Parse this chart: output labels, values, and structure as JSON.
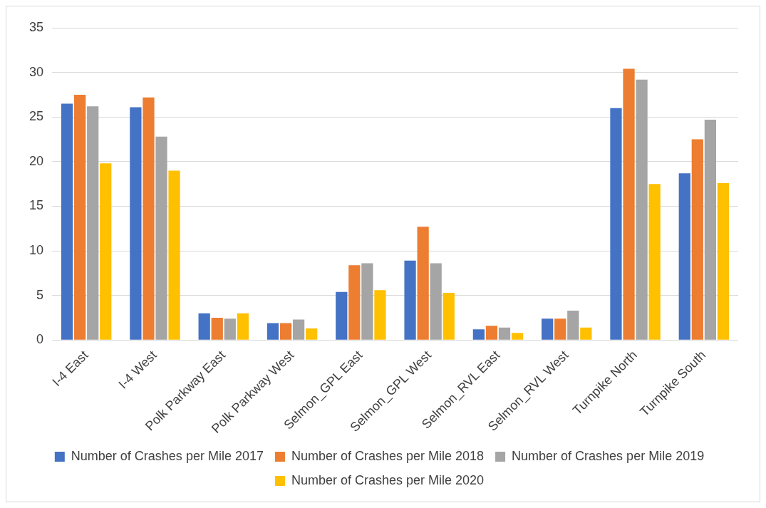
{
  "chart_data": {
    "type": "bar",
    "categories": [
      "I-4 East",
      "I-4 West",
      "Polk Parkway East",
      "Polk Parkway West",
      "Selmon_GPL East",
      "Selmon_GPL West",
      "Selmon_RVL East",
      "Selmon_RVL West",
      "Turnpike North",
      "Turnpike South"
    ],
    "series": [
      {
        "name": "Number of Crashes per Mile 2017",
        "color": "#4472c4",
        "values": [
          26.5,
          26.1,
          3.0,
          1.9,
          5.4,
          8.9,
          1.2,
          2.4,
          26.0,
          18.7
        ]
      },
      {
        "name": "Number of Crashes per Mile 2018",
        "color": "#ed7d31",
        "values": [
          27.5,
          27.2,
          2.5,
          1.9,
          8.4,
          12.7,
          1.6,
          2.4,
          30.4,
          22.5
        ]
      },
      {
        "name": "Number of Crashes per Mile 2019",
        "color": "#a5a5a5",
        "values": [
          26.2,
          22.8,
          2.4,
          2.3,
          8.6,
          8.6,
          1.4,
          3.3,
          29.2,
          24.7
        ]
      },
      {
        "name": "Number of Crashes per Mile 2020",
        "color": "#ffc000",
        "values": [
          19.8,
          19.0,
          3.0,
          1.3,
          5.6,
          5.3,
          0.8,
          1.4,
          17.5,
          17.6
        ]
      }
    ],
    "ylim": [
      0,
      35
    ],
    "yticks": [
      0,
      5,
      10,
      15,
      20,
      25,
      30,
      35
    ],
    "grid": "y",
    "legend": "bottom"
  }
}
